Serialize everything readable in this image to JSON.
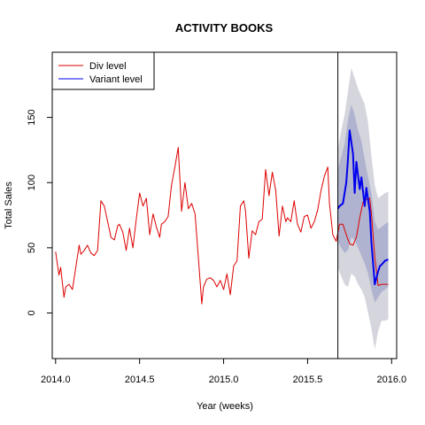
{
  "chart_data": {
    "type": "line",
    "title": "ACTIVITY BOOKS",
    "xlabel": "Year (weeks)",
    "ylabel": "Total Sales",
    "xlim": [
      2013.98,
      2016.03
    ],
    "ylim": [
      -35,
      200
    ],
    "x_ticks": [
      2014.0,
      2014.5,
      2015.0,
      2015.5,
      2016.0
    ],
    "x_tick_labels": [
      "2014.0",
      "2014.5",
      "2015.0",
      "2015.5",
      "2016.0"
    ],
    "y_ticks": [
      0,
      50,
      100,
      150
    ],
    "y_tick_labels": [
      "0",
      "50",
      "100",
      "150"
    ],
    "grid": false,
    "legend_position": "top-left",
    "forecast_start": 2015.68,
    "colors": {
      "div": "#dd0000",
      "variant": "#0000ee",
      "band_outer": "#d5d5de",
      "band_inner": "#b0b3cf"
    },
    "series": [
      {
        "name": "Div level",
        "color": "#dd0000",
        "x": [
          2014.0,
          2014.02,
          2014.03,
          2014.05,
          2014.06,
          2014.08,
          2014.1,
          2014.12,
          2014.14,
          2014.15,
          2014.17,
          2014.19,
          2014.21,
          2014.23,
          2014.25,
          2014.27,
          2014.29,
          2014.31,
          2014.33,
          2014.35,
          2014.37,
          2014.38,
          2014.4,
          2014.42,
          2014.44,
          2014.46,
          2014.48,
          2014.5,
          2014.52,
          2014.54,
          2014.56,
          2014.58,
          2014.6,
          2014.62,
          2014.63,
          2014.65,
          2014.67,
          2014.69,
          2014.71,
          2014.73,
          2014.75,
          2014.77,
          2014.79,
          2014.81,
          2014.83,
          2014.85,
          2014.87,
          2014.88,
          2014.9,
          2014.92,
          2014.94,
          2014.96,
          2014.98,
          2015.0,
          2015.02,
          2015.04,
          2015.06,
          2015.08,
          2015.1,
          2015.12,
          2015.13,
          2015.15,
          2015.17,
          2015.19,
          2015.21,
          2015.23,
          2015.25,
          2015.27,
          2015.29,
          2015.31,
          2015.33,
          2015.35,
          2015.37,
          2015.38,
          2015.4,
          2015.42,
          2015.44,
          2015.46,
          2015.48,
          2015.5,
          2015.52,
          2015.54,
          2015.56,
          2015.58,
          2015.6,
          2015.62,
          2015.63,
          2015.65,
          2015.67,
          2015.69,
          2015.71,
          2015.73,
          2015.75,
          2015.77,
          2015.79,
          2015.81,
          2015.83,
          2015.85,
          2015.87,
          2015.88,
          2015.9,
          2015.92,
          2015.94,
          2015.96,
          2015.98
        ],
        "values": [
          47,
          29,
          35,
          12,
          20,
          22,
          18,
          35,
          52,
          45,
          48,
          52,
          46,
          44,
          48,
          86,
          82,
          70,
          58,
          56,
          67,
          68,
          62,
          48,
          65,
          50,
          72,
          92,
          82,
          88,
          60,
          76,
          66,
          58,
          68,
          70,
          74,
          98,
          112,
          127,
          78,
          100,
          80,
          84,
          76,
          42,
          7,
          20,
          26,
          27,
          25,
          20,
          25,
          18,
          30,
          14,
          36,
          40,
          82,
          86,
          79,
          42,
          63,
          60,
          70,
          72,
          110,
          90,
          108,
          94,
          59,
          82,
          70,
          73,
          70,
          86,
          68,
          62,
          74,
          75,
          65,
          70,
          79,
          94,
          105,
          112,
          84,
          60,
          55,
          68,
          68,
          60,
          53,
          52,
          58,
          73,
          85,
          87,
          88,
          76,
          43,
          21,
          22,
          22,
          22
        ]
      },
      {
        "name": "Variant level",
        "color": "#0000ee",
        "x": [
          2015.68,
          2015.69,
          2015.71,
          2015.73,
          2015.74,
          2015.75,
          2015.77,
          2015.78,
          2015.79,
          2015.81,
          2015.82,
          2015.84,
          2015.85,
          2015.87,
          2015.88,
          2015.89,
          2015.9,
          2015.92,
          2015.93,
          2015.94,
          2015.96,
          2015.98
        ],
        "values": [
          80,
          82,
          84,
          100,
          118,
          140,
          122,
          92,
          116,
          95,
          104,
          82,
          96,
          78,
          54,
          38,
          22,
          32,
          36,
          37,
          40,
          41
        ]
      }
    ],
    "bands": {
      "x": [
        2015.68,
        2015.7,
        2015.72,
        2015.74,
        2015.76,
        2015.78,
        2015.8,
        2015.82,
        2015.84,
        2015.86,
        2015.88,
        2015.9,
        2015.92,
        2015.94,
        2015.96,
        2015.98
      ],
      "outer_upper": [
        125,
        140,
        152,
        170,
        188,
        180,
        172,
        166,
        160,
        146,
        120,
        98,
        88,
        90,
        92,
        93
      ],
      "outer_lower": [
        35,
        28,
        22,
        20,
        30,
        28,
        22,
        18,
        12,
        0,
        -12,
        -28,
        -14,
        -6,
        -6,
        -5
      ],
      "inner_upper": [
        110,
        120,
        130,
        148,
        160,
        152,
        140,
        132,
        118,
        104,
        92,
        70,
        64,
        66,
        68,
        70
      ],
      "inner_lower": [
        55,
        50,
        46,
        48,
        58,
        56,
        50,
        44,
        38,
        30,
        18,
        8,
        12,
        16,
        18,
        20
      ]
    }
  }
}
